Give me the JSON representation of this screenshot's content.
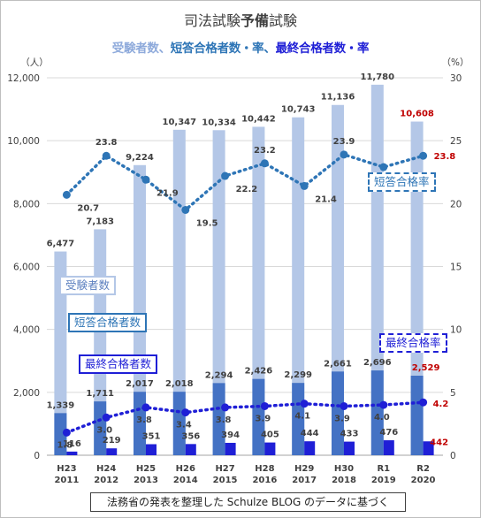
{
  "title_main_a": "司法試験",
  "title_main_b": "予備",
  "title_main_c": "試験",
  "subtitle_a": "受験者数、",
  "subtitle_b": "短答合格者数・率、",
  "subtitle_c": "最終合格者数・率",
  "footer": "法務省の発表を整理した Schulze BLOG のデータに基づく",
  "legend": {
    "applicants": "受験者数",
    "short_passers": "短答合格者数",
    "final_passers": "最終合格者数",
    "short_rate": "短答合格率",
    "final_rate": "最終合格率"
  },
  "colors": {
    "applicants": "#b4c7e7",
    "short_passers": "#4472c4",
    "final_passers": "#1f1fd6",
    "short_rate": "#2e75b6",
    "final_rate": "#1f1fd6",
    "highlight": "#c00000"
  },
  "chart_data": {
    "type": "bar",
    "title": "司法試験予備試験",
    "subtitle": "受験者数、短答合格者数・率、最終合格者数・率",
    "categories": [
      "H23\n2011",
      "H24\n2012",
      "H25\n2013",
      "H26\n2014",
      "H27\n2015",
      "H28\n2016",
      "H29\n2017",
      "H30\n2018",
      "R1\n2019",
      "R2\n2020"
    ],
    "category_lines": [
      [
        "H23",
        "2011"
      ],
      [
        "H24",
        "2012"
      ],
      [
        "H25",
        "2013"
      ],
      [
        "H26",
        "2014"
      ],
      [
        "H27",
        "2015"
      ],
      [
        "H28",
        "2016"
      ],
      [
        "H29",
        "2017"
      ],
      [
        "H30",
        "2018"
      ],
      [
        "R1",
        "2019"
      ],
      [
        "R2",
        "2020"
      ]
    ],
    "y_left_unit": "（人）",
    "y_right_unit": "（%）",
    "y_left_ticks": [
      "0",
      "2,000",
      "4,000",
      "6,000",
      "8,000",
      "10,000",
      "12,000"
    ],
    "y_right_ticks": [
      "0",
      "5",
      "10",
      "15",
      "20",
      "25",
      "30"
    ],
    "ylim_left": [
      0,
      12000
    ],
    "ylim_right": [
      0,
      30
    ],
    "series": [
      {
        "name": "受験者数",
        "type": "bar",
        "axis": "left",
        "values": [
          6477,
          7183,
          9224,
          10347,
          10334,
          10442,
          10743,
          11136,
          11780,
          10608
        ],
        "labels": [
          "6,477",
          "7,183",
          "9,224",
          "10,347",
          "10,334",
          "10,442",
          "10,743",
          "11,136",
          "11,780",
          "10,608"
        ]
      },
      {
        "name": "短答合格者数",
        "type": "bar",
        "axis": "left",
        "values": [
          1339,
          1711,
          2017,
          2018,
          2294,
          2426,
          2299,
          2661,
          2696,
          2529
        ],
        "labels": [
          "1,339",
          "1,711",
          "2,017",
          "2,018",
          "2,294",
          "2,426",
          "2,299",
          "2,661",
          "2,696",
          "2,529"
        ]
      },
      {
        "name": "最終合格者数",
        "type": "bar",
        "axis": "left",
        "values": [
          116,
          219,
          351,
          356,
          394,
          405,
          444,
          433,
          476,
          442
        ],
        "labels": [
          "116",
          "219",
          "351",
          "356",
          "394",
          "405",
          "444",
          "433",
          "476",
          "442"
        ]
      },
      {
        "name": "短答合格率",
        "type": "line",
        "axis": "right",
        "values": [
          20.7,
          23.8,
          21.9,
          19.5,
          22.2,
          23.2,
          21.4,
          23.9,
          22.9,
          23.8
        ],
        "labels": [
          "20.7",
          "23.8",
          "21.9",
          "19.5",
          "22.2",
          "23.2",
          "21.4",
          "23.9",
          "22.9",
          "23.8"
        ]
      },
      {
        "name": "最終合格率",
        "type": "line",
        "axis": "right",
        "values": [
          1.8,
          3.0,
          3.8,
          3.4,
          3.8,
          3.9,
          4.1,
          3.9,
          4.0,
          4.2
        ],
        "labels": [
          "1.8",
          "3.0",
          "3.8",
          "3.4",
          "3.8",
          "3.9",
          "4.1",
          "3.9",
          "4.0",
          "4.2"
        ]
      }
    ],
    "grid": true,
    "legend_placement": "inline labels"
  }
}
